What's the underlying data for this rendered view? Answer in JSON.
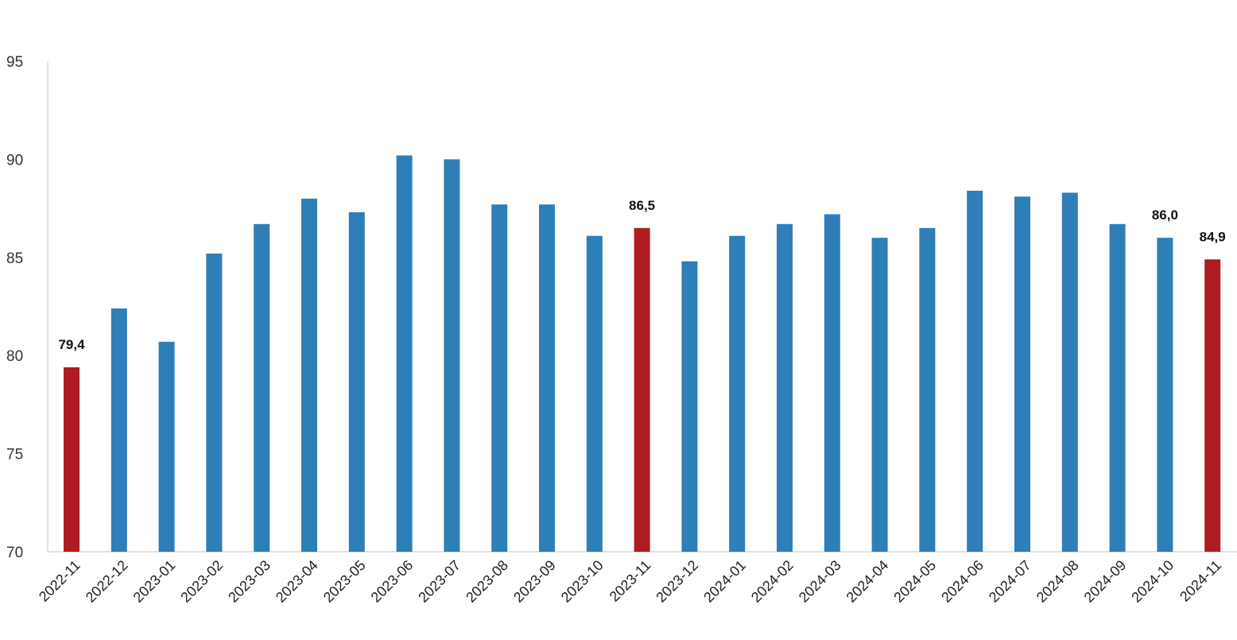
{
  "chart_data": {
    "type": "bar",
    "title": "",
    "xlabel": "",
    "ylabel": "",
    "ylim": [
      70,
      95
    ],
    "yticks": [
      "70",
      "75",
      "80",
      "85",
      "90",
      "95"
    ],
    "grid": false,
    "legend": "none",
    "categories": [
      "2022-11",
      "2022-12",
      "2023-01",
      "2023-02",
      "2023-03",
      "2023-04",
      "2023-05",
      "2023-06",
      "2023-07",
      "2023-08",
      "2023-09",
      "2023-10",
      "2023-11",
      "2023-12",
      "2024-01",
      "2024-02",
      "2024-03",
      "2024-04",
      "2024-05",
      "2024-06",
      "2024-07",
      "2024-08",
      "2024-09",
      "2024-10",
      "2024-11"
    ],
    "values": [
      79.4,
      82.4,
      80.7,
      85.2,
      86.7,
      88.0,
      87.3,
      90.2,
      90.0,
      87.7,
      87.7,
      86.1,
      86.5,
      84.8,
      86.1,
      86.7,
      87.2,
      86.0,
      86.5,
      88.4,
      88.1,
      88.3,
      86.7,
      86.0,
      84.9
    ],
    "highlighted": [
      "2022-11",
      "2023-11",
      "2024-11"
    ],
    "data_labels": [
      {
        "category": "2022-11",
        "text": "79,4"
      },
      {
        "category": "2023-11",
        "text": "86,5"
      },
      {
        "category": "2024-10",
        "text": "86,0"
      },
      {
        "category": "2024-11",
        "text": "84,9"
      }
    ],
    "colors": {
      "bar": "#2E7EB8",
      "highlight": "#AE1B20",
      "axis": "#D0D0D0"
    }
  }
}
